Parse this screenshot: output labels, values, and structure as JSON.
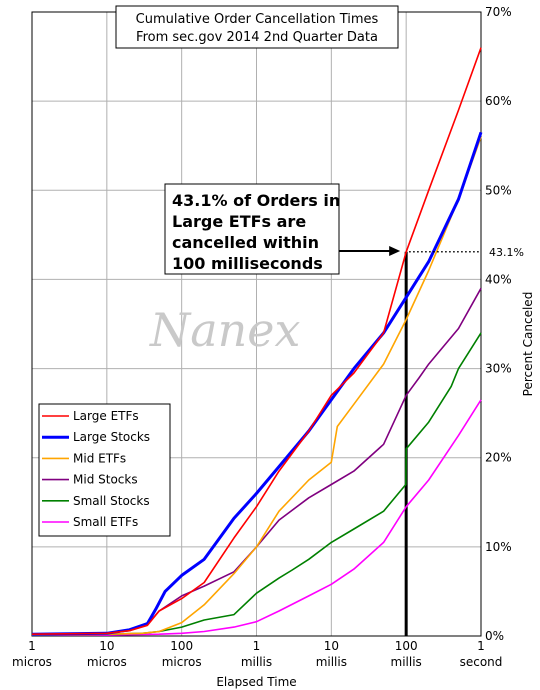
{
  "chart_data": {
    "type": "line",
    "title": [
      "Cumulative Order Cancellation Times",
      "From sec.gov 2014 2nd Quarter Data"
    ],
    "xlabel": "Elapsed Time",
    "ylabel": "Percent Canceled",
    "x_scale": "log",
    "x_ticks": [
      {
        "value": 1e-06,
        "label": [
          "1",
          "micros"
        ]
      },
      {
        "value": 1e-05,
        "label": [
          "10",
          "micros"
        ]
      },
      {
        "value": 0.0001,
        "label": [
          "100",
          "micros"
        ]
      },
      {
        "value": 0.001,
        "label": [
          "1",
          "millis"
        ]
      },
      {
        "value": 0.01,
        "label": [
          "10",
          "millis"
        ]
      },
      {
        "value": 0.1,
        "label": [
          "100",
          "millis"
        ]
      },
      {
        "value": 1,
        "label": [
          "1",
          "second"
        ]
      }
    ],
    "ylim": [
      0,
      70
    ],
    "y_ticks": [
      "0%",
      "10%",
      "20%",
      "30%",
      "40%",
      "50%",
      "60%",
      "70%"
    ],
    "grid": true,
    "legend_position": "lower-left",
    "series": [
      {
        "name": "Large ETFs",
        "color": "#ff0000",
        "width": 1.6,
        "x": [
          1e-06,
          1e-05,
          2e-05,
          3.5e-05,
          5e-05,
          0.0001,
          0.0002,
          0.0005,
          0.001,
          0.002,
          0.005,
          0.01,
          0.02,
          0.05,
          0.1,
          0.2,
          0.5,
          1
        ],
        "y": [
          0.2,
          0.3,
          0.6,
          1.2,
          2.8,
          4.2,
          6.0,
          11,
          14.5,
          18.5,
          23,
          27,
          29.5,
          34,
          43.1,
          50,
          59,
          66
        ]
      },
      {
        "name": "Large Stocks",
        "color": "#0000ff",
        "width": 3,
        "x": [
          1e-06,
          1e-05,
          2e-05,
          3.5e-05,
          4.5e-05,
          6e-05,
          0.0001,
          0.0002,
          0.0005,
          0.001,
          0.002,
          0.005,
          0.01,
          0.02,
          0.05,
          0.1,
          0.2,
          0.5,
          1
        ],
        "y": [
          0.2,
          0.3,
          0.7,
          1.4,
          3.0,
          5.0,
          6.8,
          8.6,
          13.2,
          16,
          19,
          23,
          26.5,
          30,
          34,
          38,
          42,
          49,
          56.5
        ]
      },
      {
        "name": "Mid ETFs",
        "color": "#ffa500",
        "width": 1.6,
        "x": [
          1e-06,
          1e-05,
          3e-05,
          5e-05,
          0.0001,
          0.0002,
          0.0005,
          0.001,
          0.002,
          0.005,
          0.01,
          0.012,
          0.02,
          0.05,
          0.1,
          0.2,
          0.5,
          1
        ],
        "y": [
          0.1,
          0.2,
          0.3,
          0.5,
          1.5,
          3.5,
          7.0,
          10,
          14,
          17.5,
          19.5,
          23.5,
          26,
          30.5,
          35.5,
          41,
          49,
          56
        ]
      },
      {
        "name": "Mid Stocks",
        "color": "#800080",
        "width": 1.6,
        "x": [
          1e-06,
          1e-05,
          2e-05,
          3.5e-05,
          5e-05,
          0.0001,
          0.0002,
          0.0005,
          0.001,
          0.002,
          0.005,
          0.01,
          0.02,
          0.05,
          0.1,
          0.15,
          0.2,
          0.5,
          1
        ],
        "y": [
          0.2,
          0.3,
          0.6,
          1.3,
          2.8,
          4.5,
          5.6,
          7.2,
          10,
          13,
          15.5,
          17,
          18.5,
          21.5,
          27,
          29,
          30.5,
          34.5,
          39
        ]
      },
      {
        "name": "Small Stocks",
        "color": "#008000",
        "width": 1.6,
        "x": [
          1e-06,
          1e-05,
          3e-05,
          5e-05,
          0.0001,
          0.0002,
          0.0005,
          0.001,
          0.002,
          0.003,
          0.005,
          0.01,
          0.02,
          0.05,
          0.099,
          0.1,
          0.2,
          0.4,
          0.5,
          1
        ],
        "y": [
          0.1,
          0.2,
          0.3,
          0.5,
          1.0,
          1.8,
          2.4,
          4.8,
          6.5,
          7.4,
          8.6,
          10.5,
          12,
          14,
          17,
          21,
          24,
          28,
          30,
          34
        ]
      },
      {
        "name": "Small ETFs",
        "color": "#ff00ff",
        "width": 1.6,
        "x": [
          1e-06,
          1e-05,
          5e-05,
          0.0001,
          0.0002,
          0.0005,
          0.001,
          0.002,
          0.005,
          0.01,
          0.02,
          0.05,
          0.1,
          0.2,
          0.5,
          1
        ],
        "y": [
          0.1,
          0.1,
          0.2,
          0.3,
          0.5,
          1.0,
          1.6,
          2.8,
          4.5,
          5.8,
          7.5,
          10.5,
          14.5,
          17.5,
          22.5,
          26.5
        ]
      }
    ],
    "annotation": {
      "text": [
        "43.1% of Orders in",
        "Large ETFs are",
        "cancelled within",
        "100 milliseconds"
      ],
      "value_label": "43.1%",
      "x": 0.1,
      "y": 43.1
    },
    "watermark": "Nanex"
  }
}
